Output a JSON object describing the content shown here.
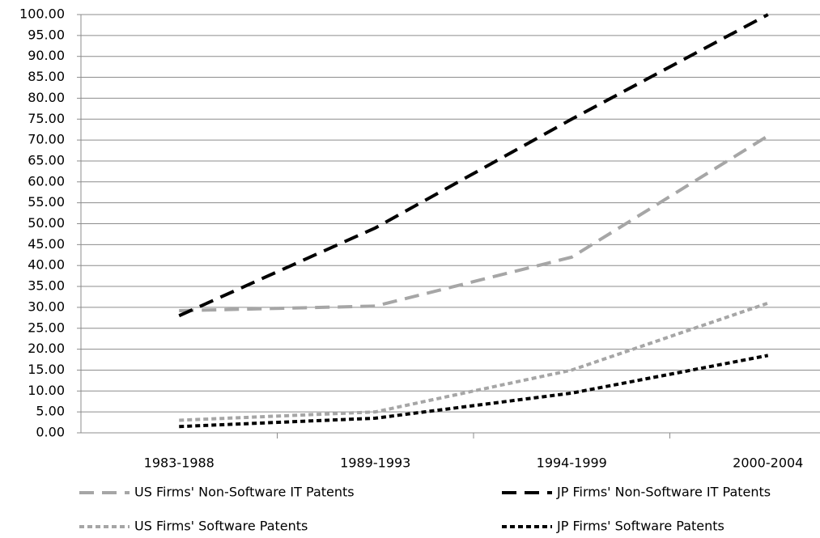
{
  "chart_data": {
    "type": "line",
    "categories": [
      "1983-1988",
      "1989-1993",
      "1994-1999",
      "2000-2004"
    ],
    "series": [
      {
        "name": "US Firms' Non-Software IT Patents",
        "color": "#a6a6a6",
        "dash": "long",
        "values": [
          29.2,
          30.3,
          42,
          71
        ]
      },
      {
        "name": "JP Firms' Non-Software IT Patents",
        "color": "#000000",
        "dash": "long",
        "values": [
          28,
          49,
          75,
          100
        ]
      },
      {
        "name": "US Firms' Software Patents",
        "color": "#a6a6a6",
        "dash": "short",
        "values": [
          3,
          5,
          15,
          31
        ]
      },
      {
        "name": "JP Firms' Software Patents",
        "color": "#000000",
        "dash": "short",
        "values": [
          1.5,
          3.5,
          9.5,
          18.5
        ]
      }
    ],
    "ylim": [
      0,
      100
    ],
    "yticks": [
      {
        "value": 0,
        "label": "0.00"
      },
      {
        "value": 5,
        "label": "5.00"
      },
      {
        "value": 10,
        "label": "10.00"
      },
      {
        "value": 15,
        "label": "15.00"
      },
      {
        "value": 20,
        "label": "20.00"
      },
      {
        "value": 25,
        "label": "25.00"
      },
      {
        "value": 30,
        "label": "30.00"
      },
      {
        "value": 35,
        "label": "35.00"
      },
      {
        "value": 40,
        "label": "40.00"
      },
      {
        "value": 45,
        "label": "45.00"
      },
      {
        "value": 50,
        "label": "50.00"
      },
      {
        "value": 55,
        "label": "55.00"
      },
      {
        "value": 60,
        "label": "60.00"
      },
      {
        "value": 65,
        "label": "65.00"
      },
      {
        "value": 70,
        "label": "70.00"
      },
      {
        "value": 75,
        "label": "75.00"
      },
      {
        "value": 80,
        "label": "80.00"
      },
      {
        "value": 85,
        "label": "85.00"
      },
      {
        "value": 90,
        "label": "90.00"
      },
      {
        "value": 95,
        "label": "95.00"
      },
      {
        "value": 100,
        "label": "100.00"
      }
    ],
    "grid": true
  }
}
